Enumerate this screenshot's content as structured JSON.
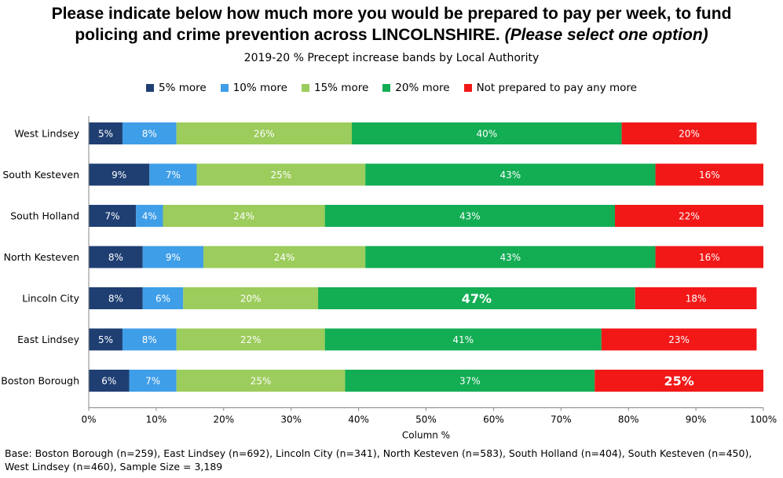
{
  "title": {
    "line1": "Please indicate below how much more you would be prepared to pay per week, to fund",
    "line2_main": "policing and crime prevention across LINCOLNSHIRE.",
    "line2_italic": "(Please select one option)"
  },
  "subtitle": "2019-20 % Precept increase bands by Local Authority",
  "footnote": {
    "line1": "Base: Boston Borough (n=259), East Lindsey (n=692), Lincoln City (n=341), North Kesteven (n=583), South Holland (n=404), South Kesteven (n=450),",
    "line2": "West Lindsey (n=460), Sample Size = 3,189"
  },
  "chart_data": {
    "type": "bar",
    "orientation": "horizontal",
    "stacked": true,
    "title": "2019-20 % Precept increase bands by Local Authority",
    "xlabel": "Column %",
    "xlim": [
      0,
      100
    ],
    "x_ticks": [
      "0%",
      "10%",
      "20%",
      "30%",
      "40%",
      "50%",
      "60%",
      "70%",
      "80%",
      "90%",
      "100%"
    ],
    "legend_position": "top",
    "grid": false,
    "categories": [
      "West Lindsey",
      "South Kesteven",
      "South Holland",
      "North Kesteven",
      "Lincoln City",
      "East Lindsey",
      "Boston Borough"
    ],
    "series": [
      {
        "name": "5% more",
        "color": "#1f3f73",
        "values": [
          5,
          9,
          7,
          8,
          8,
          5,
          6
        ]
      },
      {
        "name": "10% more",
        "color": "#3f9ee8",
        "values": [
          8,
          7,
          4,
          9,
          6,
          8,
          7
        ]
      },
      {
        "name": "15% more",
        "color": "#9ccc5c",
        "values": [
          26,
          25,
          24,
          24,
          20,
          22,
          25
        ]
      },
      {
        "name": "20% more",
        "color": "#13ad54",
        "values": [
          40,
          43,
          43,
          43,
          47,
          41,
          37
        ]
      },
      {
        "name": "Not prepared to pay any more",
        "color": "#f21818",
        "values": [
          20,
          16,
          22,
          16,
          18,
          23,
          25
        ]
      }
    ],
    "highlighted_labels": [
      {
        "category": "Lincoln City",
        "series": "20% more"
      },
      {
        "category": "Boston Borough",
        "series": "Not prepared to pay any more"
      }
    ]
  }
}
